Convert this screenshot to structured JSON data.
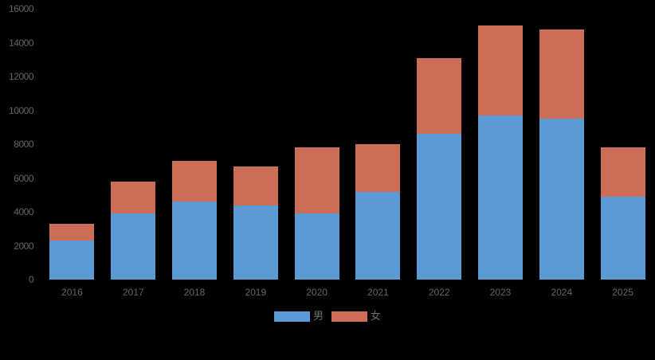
{
  "chart_data": {
    "type": "bar",
    "stacked": true,
    "title": "",
    "xlabel": "",
    "ylabel": "",
    "categories": [
      "2016",
      "2017",
      "2018",
      "2019",
      "2020",
      "2021",
      "2022",
      "2023",
      "2024",
      "2025"
    ],
    "series": [
      {
        "key": "male",
        "name": "男",
        "color": "#5B9BD5",
        "values": [
          2300,
          3900,
          4600,
          4400,
          3900,
          5200,
          8600,
          9700,
          9500,
          4900
        ]
      },
      {
        "key": "female",
        "name": "女",
        "color": "#CC6D58",
        "values": [
          1000,
          1900,
          2400,
          2300,
          3900,
          2800,
          4500,
          5300,
          5300,
          2900
        ]
      }
    ],
    "ylim": [
      0,
      16000
    ],
    "yticks": [
      0,
      2000,
      4000,
      6000,
      8000,
      10000,
      12000,
      14000,
      16000
    ],
    "grid": false,
    "legend_position": "bottom",
    "background_color": "#000000",
    "axis_text_color": "#646464"
  }
}
